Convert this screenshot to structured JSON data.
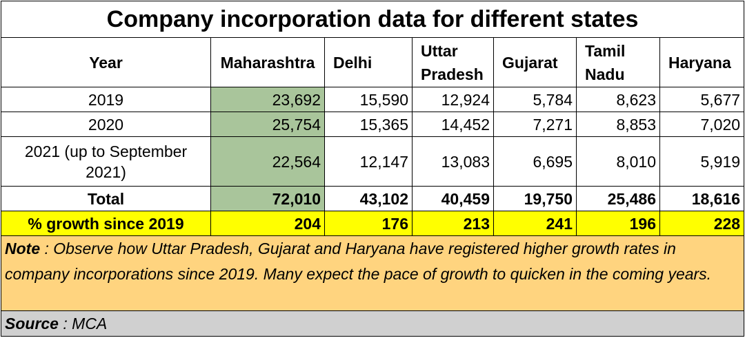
{
  "chart_data": {
    "type": "table",
    "title": "Company incorporation data for different states",
    "columns": [
      "Year",
      "Maharashtra",
      "Delhi",
      "Uttar Pradesh",
      "Gujarat",
      "Tamil Nadu",
      "Haryana"
    ],
    "rows": [
      {
        "label": "2019",
        "values": [
          "23,692",
          "15,590",
          "12,924",
          "5,784",
          "8,623",
          "5,677"
        ]
      },
      {
        "label": "2020",
        "values": [
          "25,754",
          "15,365",
          "14,452",
          "7,271",
          "8,853",
          "7,020"
        ]
      },
      {
        "label": "2021 (up to September 2021)",
        "values": [
          "22,564",
          "12,147",
          "13,083",
          "6,695",
          "8,010",
          "5,919"
        ]
      }
    ],
    "total": {
      "label": "Total",
      "values": [
        "72,010",
        "43,102",
        "40,459",
        "19,750",
        "25,486",
        "18,616"
      ]
    },
    "growth": {
      "label": "% growth since 2019",
      "values": [
        "204",
        "176",
        "213",
        "241",
        "196",
        "228"
      ]
    },
    "note": {
      "label": "Note",
      "text": " : Observe how Uttar Pradesh, Gujarat and Haryana have registered higher growth rates in company incorporations since 2019. Many expect the pace of growth to quicken in the coming years."
    },
    "source": {
      "label": "Source",
      "text": " : MCA"
    }
  },
  "colors": {
    "highlight_column": "#a9c59b",
    "growth_row": "#ffff00",
    "note_background": "#ffd47f",
    "source_background": "#d0d0d0"
  }
}
